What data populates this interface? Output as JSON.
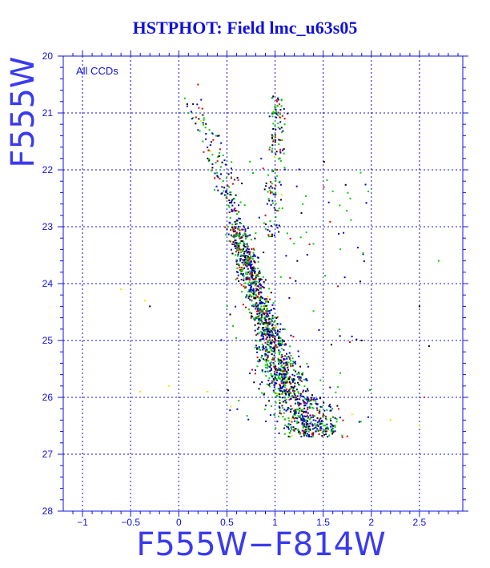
{
  "chart_data": {
    "type": "scatter",
    "title": "HSTPHOT: Field lmc_u63s05",
    "xlabel": "F555W−F814W",
    "ylabel": "F555W",
    "annotation": "All CCDs",
    "xlim": [
      -1.2,
      2.95
    ],
    "ylim": [
      20,
      28
    ],
    "y_inverted": true,
    "x_ticks": [
      -1,
      -0.5,
      0,
      0.5,
      1,
      1.5,
      2,
      2.5
    ],
    "x_tick_labels": [
      "−1",
      "−0.5",
      "0",
      "0.5",
      "1",
      "1.5",
      "2",
      "2.5"
    ],
    "y_ticks": [
      20,
      21,
      22,
      23,
      24,
      25,
      26,
      27,
      28
    ],
    "y_tick_labels": [
      "20",
      "21",
      "22",
      "23",
      "24",
      "25",
      "26",
      "27",
      "28"
    ],
    "grid": true,
    "grid_color": "#1010e0",
    "axis_color": "#1010e0",
    "series_colors": [
      "#0000cc",
      "#00cc00",
      "#000000",
      "#e00000",
      "#e8e800"
    ],
    "series": [
      {
        "name": "",
        "color": "#0000cc",
        "description": "main sequence and turnoff",
        "points": [
          [
            0.72,
            23.6
          ],
          [
            0.75,
            24.0
          ],
          [
            0.78,
            24.4
          ],
          [
            0.82,
            24.8
          ],
          [
            0.88,
            25.1
          ],
          [
            0.95,
            25.4
          ],
          [
            1.02,
            25.7
          ],
          [
            1.1,
            26.0
          ],
          [
            1.2,
            26.3
          ],
          [
            1.3,
            26.5
          ],
          [
            0.68,
            23.3
          ],
          [
            0.62,
            23.0
          ],
          [
            0.55,
            22.7
          ],
          [
            0.45,
            22.3
          ],
          [
            0.35,
            21.9
          ],
          [
            0.2,
            21.3
          ],
          [
            1.0,
            21.0
          ],
          [
            1.05,
            21.8
          ],
          [
            0.92,
            22.6
          ],
          [
            0.8,
            25.0
          ],
          [
            1.15,
            25.9
          ],
          [
            1.4,
            26.4
          ]
        ]
      },
      {
        "name": "",
        "color": "#00cc00",
        "description": "main sequence and turnoff",
        "points": [
          [
            0.7,
            23.8
          ],
          [
            0.74,
            24.2
          ],
          [
            0.8,
            24.6
          ],
          [
            0.86,
            24.9
          ],
          [
            0.92,
            25.3
          ],
          [
            1.0,
            25.6
          ],
          [
            1.08,
            25.9
          ],
          [
            1.18,
            26.2
          ],
          [
            1.35,
            26.6
          ],
          [
            0.6,
            22.9
          ],
          [
            0.5,
            22.5
          ],
          [
            0.4,
            22.1
          ],
          [
            0.25,
            21.5
          ],
          [
            0.1,
            21.0
          ],
          [
            1.1,
            21.2
          ],
          [
            0.95,
            22.9
          ],
          [
            1.5,
            26.5
          ],
          [
            2.7,
            23.6
          ]
        ]
      },
      {
        "name": "",
        "color": "#000000",
        "description": "field scatter",
        "points": [
          [
            0.85,
            25.0
          ],
          [
            1.05,
            26.1
          ],
          [
            1.25,
            26.6
          ],
          [
            0.65,
            23.5
          ],
          [
            0.3,
            21.8
          ],
          [
            -0.3,
            24.4
          ],
          [
            2.5,
            24.4
          ],
          [
            1.9,
            25.0
          ],
          [
            2.6,
            25.1
          ],
          [
            0.75,
            24.1
          ]
        ]
      },
      {
        "name": "",
        "color": "#e00000",
        "description": "red giant and faint stars",
        "points": [
          [
            1.0,
            20.9
          ],
          [
            1.1,
            21.1
          ],
          [
            0.98,
            21.5
          ],
          [
            0.9,
            22.8
          ],
          [
            1.6,
            26.6
          ],
          [
            1.7,
            26.7
          ],
          [
            0.82,
            24.7
          ],
          [
            1.22,
            26.0
          ],
          [
            0.2,
            20.5
          ],
          [
            2.55,
            26.0
          ]
        ]
      },
      {
        "name": "",
        "color": "#e8e800",
        "description": "sparse outliers",
        "points": [
          [
            -0.6,
            24.1
          ],
          [
            -0.35,
            24.3
          ],
          [
            -0.4,
            25.9
          ],
          [
            -0.1,
            25.8
          ],
          [
            0.3,
            25.9
          ],
          [
            2.2,
            26.4
          ],
          [
            2.5,
            26.5
          ],
          [
            1.8,
            26.3
          ]
        ]
      }
    ]
  }
}
